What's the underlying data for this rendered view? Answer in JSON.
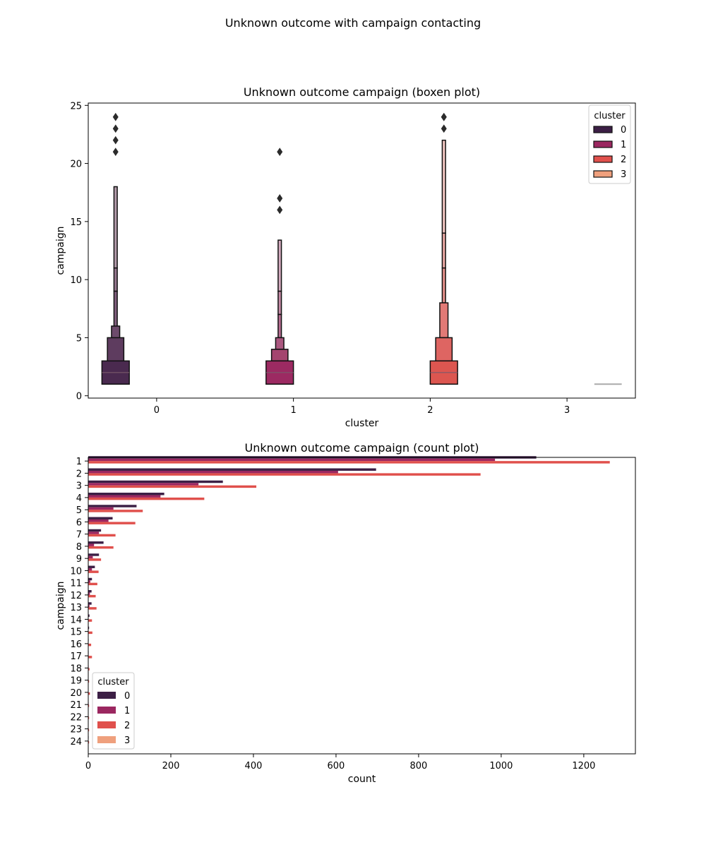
{
  "suptitle": "Unknown outcome with campaign contacting",
  "palette": {
    "0": "#3c1f45",
    "1": "#9b2760",
    "2": "#e0504c",
    "3": "#efa07d"
  },
  "chart_data": [
    {
      "type": "boxen",
      "title": "Unknown outcome campaign (boxen plot)",
      "xlabel": "cluster",
      "ylabel": "campaign",
      "categories": [
        "0",
        "1",
        "2",
        "3"
      ],
      "ylim": [
        -0.2,
        25.2
      ],
      "yticks": [
        0,
        5,
        10,
        15,
        20,
        25
      ],
      "legend": {
        "title": "cluster",
        "entries": [
          "0",
          "1",
          "2",
          "3"
        ],
        "placement": "upper-right"
      },
      "series": [
        {
          "name": "0",
          "fill": "#4a2a4f",
          "boxes": [
            {
              "lo": 1,
              "hi": 3,
              "color": "#4a2a4f"
            },
            {
              "lo": 1,
              "hi": 5,
              "color": "#5e3c5f"
            },
            {
              "lo": 3,
              "hi": 6,
              "color": "#6d4b6c"
            },
            {
              "lo": 5,
              "hi": 9,
              "color": "#815f7e"
            },
            {
              "lo": 9,
              "hi": 11,
              "color": "#96778f"
            },
            {
              "lo": 11,
              "hi": 18,
              "color": "#b29aaa"
            }
          ],
          "median": 2,
          "outliers": [
            21,
            22,
            23,
            24
          ]
        },
        {
          "name": "1",
          "fill": "#9c2a62",
          "boxes": [
            {
              "lo": 1,
              "hi": 3,
              "color": "#9c2a62"
            },
            {
              "lo": 3,
              "hi": 4,
              "color": "#a4456f"
            },
            {
              "lo": 4,
              "hi": 5,
              "color": "#ab5880"
            },
            {
              "lo": 5,
              "hi": 7,
              "color": "#b66d91"
            },
            {
              "lo": 7,
              "hi": 9,
              "color": "#c48aa5"
            },
            {
              "lo": 9,
              "hi": 13.4,
              "color": "#d4abbf"
            }
          ],
          "median": 2,
          "outliers": [
            16,
            17,
            21
          ]
        },
        {
          "name": "2",
          "fill": "#dc5650",
          "boxes": [
            {
              "lo": 1,
              "hi": 3,
              "color": "#dc5650"
            },
            {
              "lo": 3,
              "hi": 5,
              "color": "#de6562"
            },
            {
              "lo": 5,
              "hi": 8,
              "color": "#e27a76"
            },
            {
              "lo": 8,
              "hi": 11,
              "color": "#e6908b"
            },
            {
              "lo": 11,
              "hi": 14,
              "color": "#ecaaa5"
            },
            {
              "lo": 14,
              "hi": 22,
              "color": "#f2c6c2"
            }
          ],
          "median": 2,
          "outliers": [
            23,
            24,
            24
          ]
        },
        {
          "name": "3",
          "fill": "#aaaaaa",
          "boxes": [],
          "median": 1,
          "outliers": []
        }
      ]
    },
    {
      "type": "bar",
      "orientation": "horizontal",
      "title": "Unknown outcome campaign (count plot)",
      "xlabel": "count",
      "ylabel": "campaign",
      "xlim": [
        0,
        1325
      ],
      "xticks": [
        0,
        200,
        400,
        600,
        800,
        1000,
        1200
      ],
      "categories": [
        "1",
        "2",
        "3",
        "4",
        "5",
        "6",
        "7",
        "8",
        "9",
        "10",
        "11",
        "12",
        "13",
        "14",
        "15",
        "16",
        "17",
        "18",
        "19",
        "20",
        "21",
        "22",
        "23",
        "24"
      ],
      "legend": {
        "title": "cluster",
        "entries": [
          "0",
          "1",
          "2",
          "3"
        ],
        "placement": "lower-left"
      },
      "series": [
        {
          "name": "0",
          "values": [
            1085,
            697,
            326,
            184,
            117,
            59,
            31,
            37,
            26,
            16,
            9,
            8,
            8,
            3,
            2,
            1,
            1,
            0,
            0,
            0,
            0,
            0,
            0,
            1
          ]
        },
        {
          "name": "1",
          "values": [
            985,
            605,
            267,
            175,
            61,
            49,
            26,
            14,
            11,
            9,
            5,
            4,
            3,
            0,
            0,
            0,
            1,
            1,
            0,
            0,
            1,
            0,
            0,
            0
          ]
        },
        {
          "name": "2",
          "values": [
            1263,
            950,
            407,
            281,
            132,
            114,
            66,
            61,
            31,
            25,
            22,
            18,
            20,
            9,
            10,
            7,
            9,
            3,
            2,
            4,
            2,
            2,
            2,
            2
          ]
        },
        {
          "name": "3",
          "values": [
            0,
            0,
            0,
            0,
            0,
            0,
            0,
            0,
            0,
            0,
            0,
            0,
            0,
            0,
            0,
            0,
            0,
            0,
            0,
            0,
            0,
            0,
            0,
            0
          ]
        }
      ]
    }
  ]
}
